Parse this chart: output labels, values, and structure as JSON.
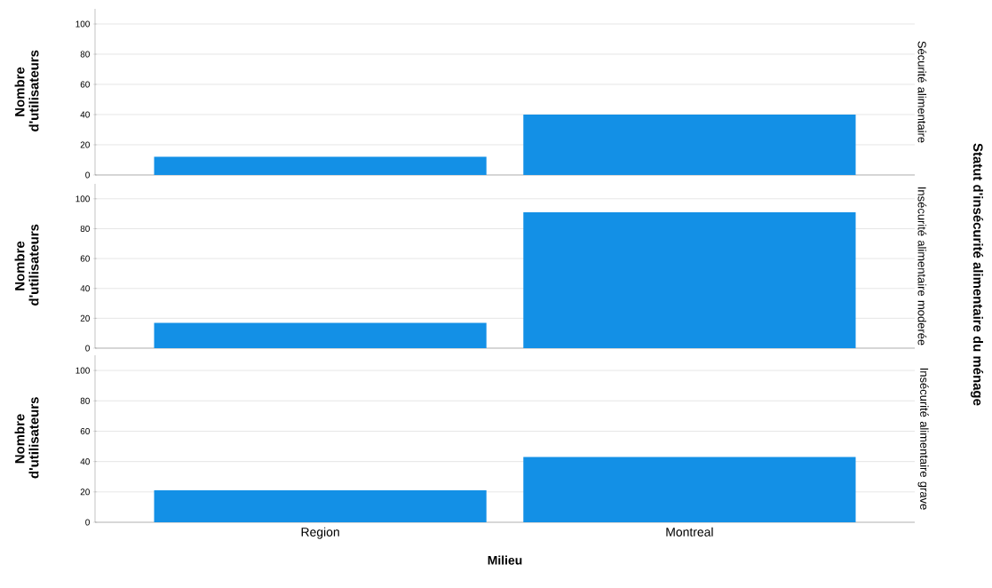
{
  "chart_data": [
    {
      "type": "bar",
      "title": "Sécurité alimentaire",
      "ylabel": "Nombre d'utilisateurs",
      "categories": [
        null,
        null
      ],
      "values": [
        12,
        40
      ],
      "color": "#1390e6",
      "ylim": [
        0,
        110
      ],
      "yticks": [
        0,
        20,
        40,
        60,
        80,
        100
      ],
      "grid": "y",
      "tick_labels": "y"
    },
    {
      "type": "bar",
      "title": "Insécurité alimentaire moderée",
      "ylabel": "Nombre d'utilisateurs",
      "annotations": [
        "Statut d'insécurité alimentaire du ménage"
      ],
      "categories": [
        null,
        null
      ],
      "values": [
        17,
        91
      ],
      "color": "#1390e6",
      "ylim": [
        0,
        110
      ],
      "yticks": [
        0,
        20,
        40,
        60,
        80,
        100
      ],
      "grid": "y",
      "tick_labels": "y"
    },
    {
      "type": "bar",
      "title": "Insécurité alimentaire grave",
      "ylabel": "Nombre d'utilisateurs",
      "xlabel": "Milieu",
      "categories": [
        "Region",
        "Montreal"
      ],
      "values": [
        21,
        43
      ],
      "color": "#1390e6",
      "ylim": [
        0,
        110
      ],
      "yticks": [
        0,
        20,
        40,
        60,
        80,
        100
      ],
      "grid": "y"
    }
  ]
}
